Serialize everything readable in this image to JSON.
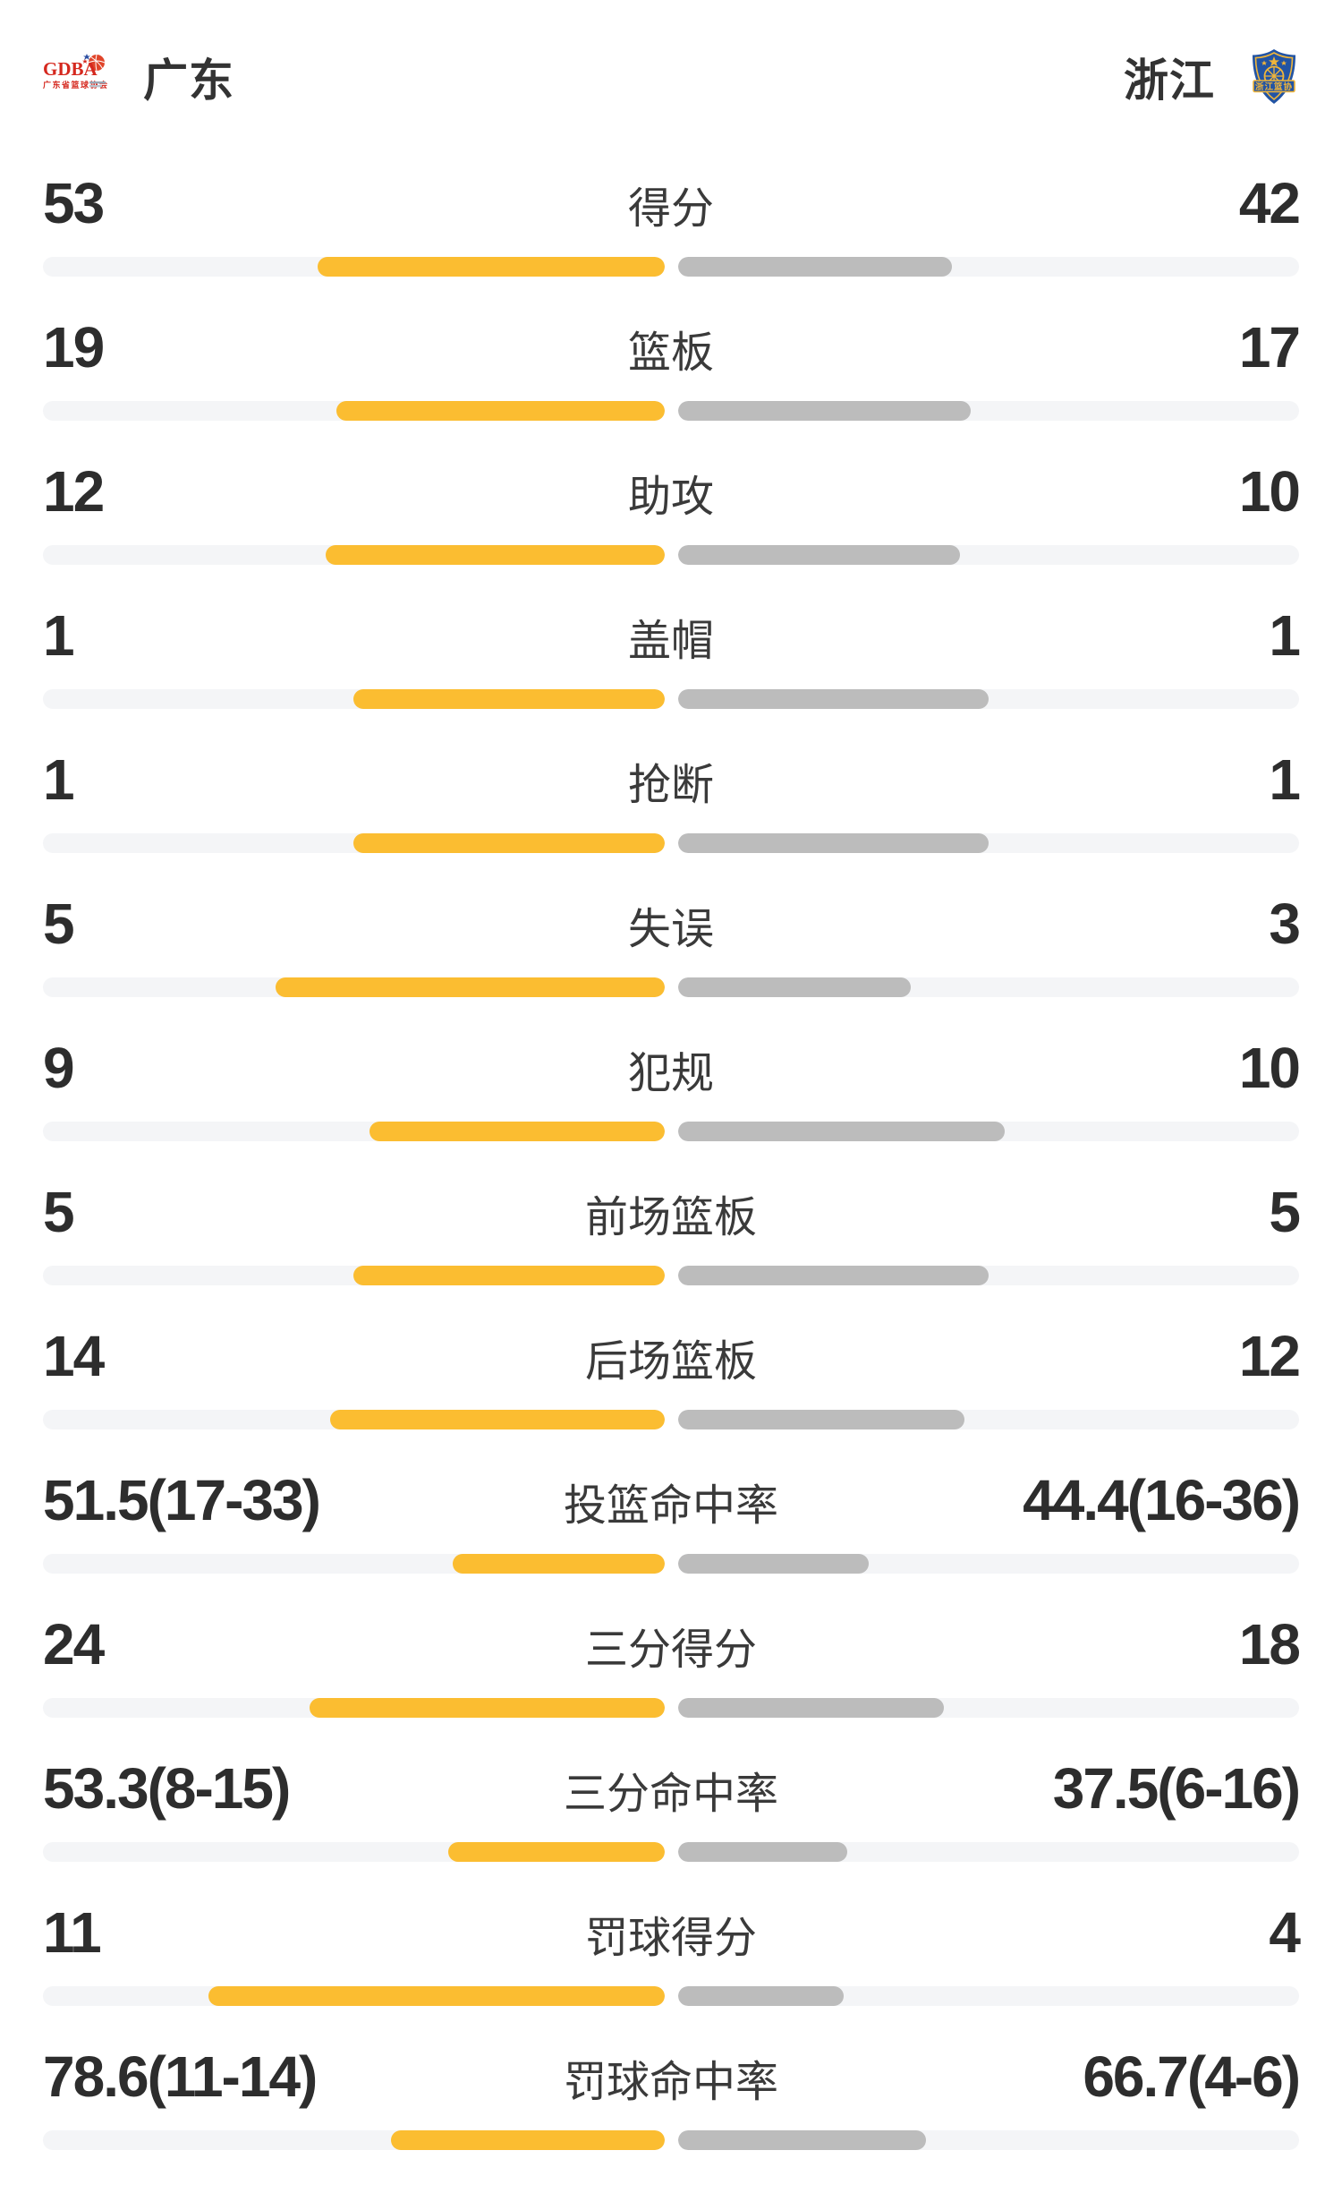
{
  "header": {
    "home": {
      "name": "广东",
      "logo_letters": "GDBA",
      "logo_subtext": "广东省篮球协会"
    },
    "away": {
      "name": "浙江",
      "logo_banner": "浙江篮协"
    }
  },
  "colors": {
    "home_bar": "#fbbd31",
    "away_bar": "#bcbcbc",
    "bar_track": "#f4f5f7",
    "number_text": "#2d2d2d",
    "label_text": "#3a3a3a",
    "team_name_text": "#333333",
    "gdba_red": "#d5281e",
    "zjba_blue": "#2254a4",
    "zjba_gold": "#f0b53a"
  },
  "stats": {
    "rows": [
      {
        "label": "得分",
        "left": "53",
        "right": "42",
        "left_fill_pct": 55.8,
        "right_fill_pct": 44.2
      },
      {
        "label": "篮板",
        "left": "19",
        "right": "17",
        "left_fill_pct": 52.8,
        "right_fill_pct": 47.2
      },
      {
        "label": "助攻",
        "left": "12",
        "right": "10",
        "left_fill_pct": 54.5,
        "right_fill_pct": 45.5
      },
      {
        "label": "盖帽",
        "left": "1",
        "right": "1",
        "left_fill_pct": 50.0,
        "right_fill_pct": 50.0
      },
      {
        "label": "抢断",
        "left": "1",
        "right": "1",
        "left_fill_pct": 50.0,
        "right_fill_pct": 50.0
      },
      {
        "label": "失误",
        "left": "5",
        "right": "3",
        "left_fill_pct": 62.5,
        "right_fill_pct": 37.5
      },
      {
        "label": "犯规",
        "left": "9",
        "right": "10",
        "left_fill_pct": 47.4,
        "right_fill_pct": 52.6
      },
      {
        "label": "前场篮板",
        "left": "5",
        "right": "5",
        "left_fill_pct": 50.0,
        "right_fill_pct": 50.0
      },
      {
        "label": "后场篮板",
        "left": "14",
        "right": "12",
        "left_fill_pct": 53.8,
        "right_fill_pct": 46.2
      },
      {
        "label": "投篮命中率",
        "left": "51.5(17-33)",
        "right": "44.4(16-36)",
        "left_fill_pct": 34.0,
        "right_fill_pct": 30.8
      },
      {
        "label": "三分得分",
        "left": "24",
        "right": "18",
        "left_fill_pct": 57.1,
        "right_fill_pct": 42.9
      },
      {
        "label": "三分命中率",
        "left": "53.3(8-15)",
        "right": "37.5(6-16)",
        "left_fill_pct": 34.8,
        "right_fill_pct": 27.3
      },
      {
        "label": "罚球得分",
        "left": "11",
        "right": "4",
        "left_fill_pct": 73.3,
        "right_fill_pct": 26.7
      },
      {
        "label": "罚球命中率",
        "left": "78.6(11-14)",
        "right": "66.7(4-6)",
        "left_fill_pct": 44.0,
        "right_fill_pct": 40.0
      }
    ]
  },
  "chart_data": {
    "type": "bar",
    "orientation": "horizontal-paired-from-center",
    "categories": [
      "得分",
      "篮板",
      "助攻",
      "盖帽",
      "抢断",
      "失误",
      "犯规",
      "前场篮板",
      "后场篮板",
      "投篮命中率",
      "三分得分",
      "三分命中率",
      "罚球得分",
      "罚球命中率"
    ],
    "series": [
      {
        "name": "广东",
        "display_values": [
          "53",
          "19",
          "12",
          "1",
          "1",
          "5",
          "9",
          "5",
          "14",
          "51.5(17-33)",
          "24",
          "53.3(8-15)",
          "11",
          "78.6(11-14)"
        ],
        "bar_fill_pct": [
          55.8,
          52.8,
          54.5,
          50,
          50,
          62.5,
          47.4,
          50,
          53.8,
          34.0,
          57.1,
          34.8,
          73.3,
          44.0
        ],
        "color": "#fbbd31"
      },
      {
        "name": "浙江",
        "display_values": [
          "42",
          "17",
          "10",
          "1",
          "1",
          "3",
          "10",
          "5",
          "12",
          "44.4(16-36)",
          "18",
          "37.5(6-16)",
          "4",
          "66.7(4-6)"
        ],
        "bar_fill_pct": [
          44.2,
          47.2,
          45.5,
          50,
          50,
          37.5,
          52.6,
          50,
          46.2,
          30.8,
          42.9,
          27.3,
          26.7,
          40.0
        ],
        "color": "#bcbcbc"
      },
      {
        "name": "track",
        "color": "#f4f5f7"
      }
    ],
    "legend_position": "top (team names with logos)",
    "grid": false
  }
}
